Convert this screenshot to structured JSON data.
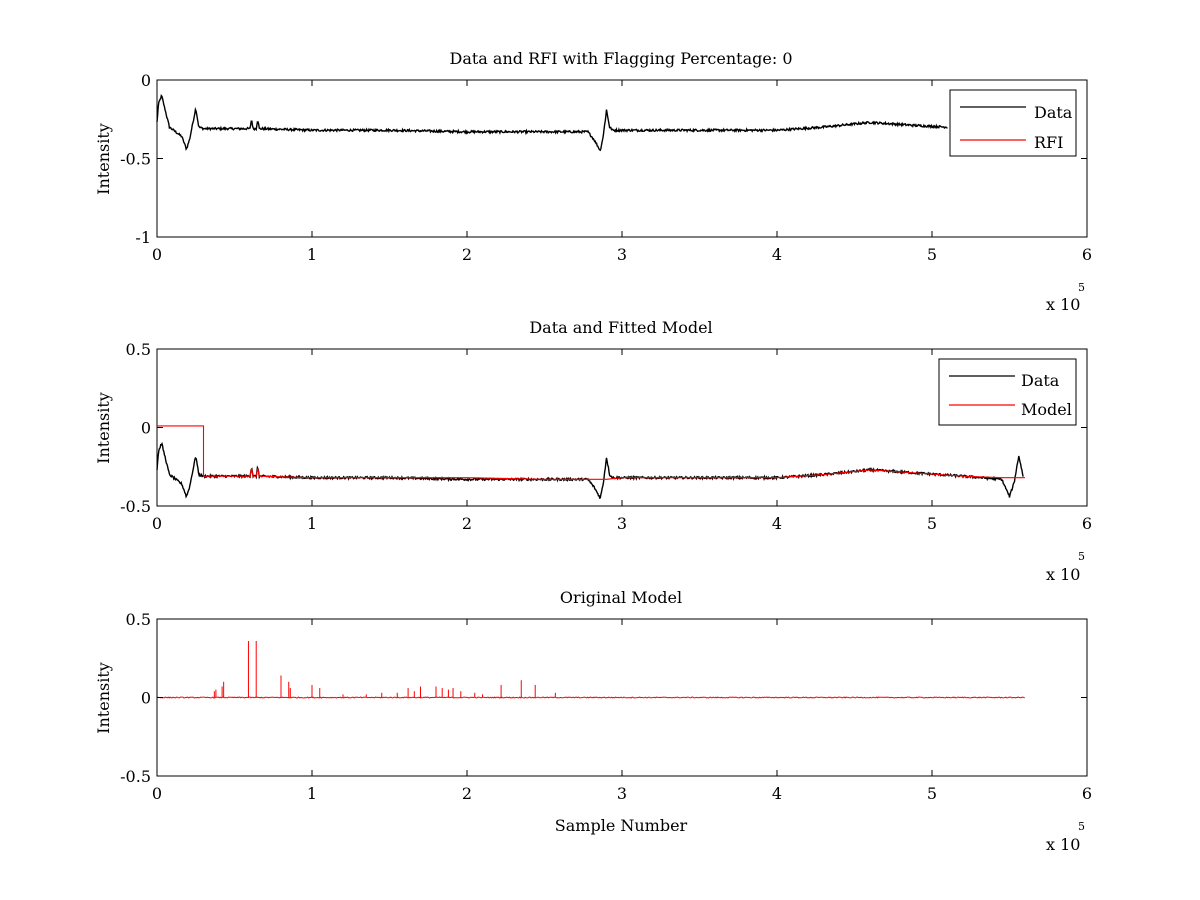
{
  "figure": {
    "background": "#ffffff"
  },
  "chart_data": [
    {
      "type": "line",
      "title": "Data and RFI with Flagging Percentage: 0",
      "xlabel": "",
      "ylabel": "Intensity",
      "xlim": [
        0,
        6
      ],
      "ylim": [
        -1,
        0
      ],
      "xticks": [
        "0",
        "1",
        "2",
        "3",
        "4",
        "5",
        "6"
      ],
      "xtick_values": [
        0,
        1,
        2,
        3,
        4,
        5,
        6
      ],
      "yticks": [
        "-1",
        "-0.5",
        "0"
      ],
      "ytick_values": [
        -1,
        -0.5,
        0
      ],
      "x_exponent_label": "x 10",
      "x_exponent_power": "5",
      "grid": false,
      "legend": {
        "placement": "top-right",
        "entries": [
          {
            "label": "Data",
            "color": "#000000"
          },
          {
            "label": "RFI",
            "color": "#ff0000"
          }
        ]
      },
      "series": [
        {
          "name": "Data",
          "color": "#000000",
          "x": [
            0,
            0.01,
            0.03,
            0.05,
            0.08,
            0.12,
            0.16,
            0.19,
            0.21,
            0.23,
            0.25,
            0.27,
            0.3,
            0.5,
            0.6,
            0.61,
            0.62,
            0.64,
            0.65,
            0.66,
            1.0,
            1.5,
            2.0,
            2.5,
            2.78,
            2.82,
            2.86,
            2.88,
            2.9,
            2.92,
            2.94,
            3.0,
            3.5,
            4.0,
            4.3,
            4.6,
            4.9,
            5.1
          ],
          "y": [
            -0.27,
            -0.15,
            -0.1,
            -0.18,
            -0.3,
            -0.33,
            -0.36,
            -0.44,
            -0.38,
            -0.28,
            -0.18,
            -0.3,
            -0.31,
            -0.31,
            -0.31,
            -0.25,
            -0.31,
            -0.31,
            -0.25,
            -0.31,
            -0.32,
            -0.32,
            -0.33,
            -0.33,
            -0.33,
            -0.38,
            -0.45,
            -0.35,
            -0.19,
            -0.3,
            -0.32,
            -0.32,
            -0.32,
            -0.32,
            -0.3,
            -0.27,
            -0.29,
            -0.3
          ]
        }
      ]
    },
    {
      "type": "line",
      "title": "Data and Fitted Model",
      "xlabel": "",
      "ylabel": "Intensity",
      "xlim": [
        0,
        6
      ],
      "ylim": [
        -0.5,
        0.5
      ],
      "xticks": [
        "0",
        "1",
        "2",
        "3",
        "4",
        "5",
        "6"
      ],
      "xtick_values": [
        0,
        1,
        2,
        3,
        4,
        5,
        6
      ],
      "yticks": [
        "-0.5",
        "0",
        "0.5"
      ],
      "ytick_values": [
        -0.5,
        0,
        0.5
      ],
      "x_exponent_label": "x 10",
      "x_exponent_power": "5",
      "grid": false,
      "legend": {
        "placement": "top-right",
        "entries": [
          {
            "label": "Data",
            "color": "#000000"
          },
          {
            "label": "Model",
            "color": "#ff0000"
          }
        ]
      },
      "series": [
        {
          "name": "Data",
          "color": "#000000",
          "x": [
            0,
            0.01,
            0.03,
            0.05,
            0.08,
            0.12,
            0.16,
            0.19,
            0.21,
            0.23,
            0.25,
            0.27,
            0.3,
            0.5,
            0.6,
            0.61,
            0.62,
            0.64,
            0.65,
            0.66,
            1.0,
            1.5,
            2.0,
            2.5,
            2.78,
            2.82,
            2.86,
            2.88,
            2.9,
            2.92,
            2.94,
            3.0,
            3.5,
            4.0,
            4.3,
            4.6,
            4.9,
            5.2,
            5.45,
            5.5,
            5.53,
            5.56,
            5.59
          ],
          "y": [
            -0.27,
            -0.15,
            -0.1,
            -0.18,
            -0.3,
            -0.33,
            -0.36,
            -0.44,
            -0.38,
            -0.28,
            -0.18,
            -0.3,
            -0.31,
            -0.31,
            -0.31,
            -0.25,
            -0.31,
            -0.31,
            -0.25,
            -0.31,
            -0.32,
            -0.32,
            -0.33,
            -0.33,
            -0.33,
            -0.38,
            -0.45,
            -0.35,
            -0.19,
            -0.3,
            -0.32,
            -0.32,
            -0.32,
            -0.32,
            -0.3,
            -0.27,
            -0.29,
            -0.31,
            -0.33,
            -0.44,
            -0.35,
            -0.18,
            -0.32
          ]
        },
        {
          "name": "Model",
          "color": "#ff0000",
          "x": [
            0,
            0.3,
            0.3,
            0.6,
            0.61,
            0.62,
            0.64,
            0.65,
            0.66,
            1.0,
            1.5,
            2.0,
            2.5,
            2.85,
            2.9,
            3.0,
            3.5,
            4.0,
            4.3,
            4.6,
            4.9,
            5.2,
            5.45,
            5.6
          ],
          "y": [
            0.01,
            0.01,
            -0.31,
            -0.31,
            -0.26,
            -0.31,
            -0.31,
            -0.26,
            -0.31,
            -0.32,
            -0.32,
            -0.32,
            -0.33,
            -0.33,
            -0.33,
            -0.32,
            -0.32,
            -0.32,
            -0.3,
            -0.27,
            -0.29,
            -0.31,
            -0.32,
            -0.32
          ]
        }
      ]
    },
    {
      "type": "line",
      "title": "Original Model",
      "xlabel": "Sample Number",
      "ylabel": "Intensity",
      "xlim": [
        0,
        6
      ],
      "ylim": [
        -0.5,
        0.5
      ],
      "xticks": [
        "0",
        "1",
        "2",
        "3",
        "4",
        "5",
        "6"
      ],
      "xtick_values": [
        0,
        1,
        2,
        3,
        4,
        5,
        6
      ],
      "yticks": [
        "-0.5",
        "0",
        "0.5"
      ],
      "ytick_values": [
        -0.5,
        0,
        0.5
      ],
      "x_exponent_label": "x 10",
      "x_exponent_power": "5",
      "grid": false,
      "legend": null,
      "series": [
        {
          "color": "#ff0000",
          "baseline": 0,
          "x_end": 5.6,
          "spikes": [
            {
              "x": 0.37,
              "y": 0.04
            },
            {
              "x": 0.38,
              "y": 0.05
            },
            {
              "x": 0.42,
              "y": 0.07
            },
            {
              "x": 0.43,
              "y": 0.1
            },
            {
              "x": 0.59,
              "y": 0.36
            },
            {
              "x": 0.64,
              "y": 0.36
            },
            {
              "x": 0.8,
              "y": 0.14
            },
            {
              "x": 0.85,
              "y": 0.1
            },
            {
              "x": 0.86,
              "y": 0.06
            },
            {
              "x": 1.0,
              "y": 0.08
            },
            {
              "x": 1.05,
              "y": 0.06
            },
            {
              "x": 1.2,
              "y": 0.02
            },
            {
              "x": 1.35,
              "y": 0.02
            },
            {
              "x": 1.45,
              "y": 0.03
            },
            {
              "x": 1.55,
              "y": 0.03
            },
            {
              "x": 1.62,
              "y": 0.06
            },
            {
              "x": 1.66,
              "y": 0.04
            },
            {
              "x": 1.7,
              "y": 0.07
            },
            {
              "x": 1.8,
              "y": 0.07
            },
            {
              "x": 1.84,
              "y": 0.06
            },
            {
              "x": 1.88,
              "y": 0.05
            },
            {
              "x": 1.91,
              "y": 0.06
            },
            {
              "x": 1.96,
              "y": 0.04
            },
            {
              "x": 2.05,
              "y": 0.03
            },
            {
              "x": 2.1,
              "y": 0.02
            },
            {
              "x": 2.22,
              "y": 0.08
            },
            {
              "x": 2.35,
              "y": 0.11
            },
            {
              "x": 2.44,
              "y": 0.08
            },
            {
              "x": 2.57,
              "y": 0.03
            }
          ]
        }
      ]
    }
  ]
}
